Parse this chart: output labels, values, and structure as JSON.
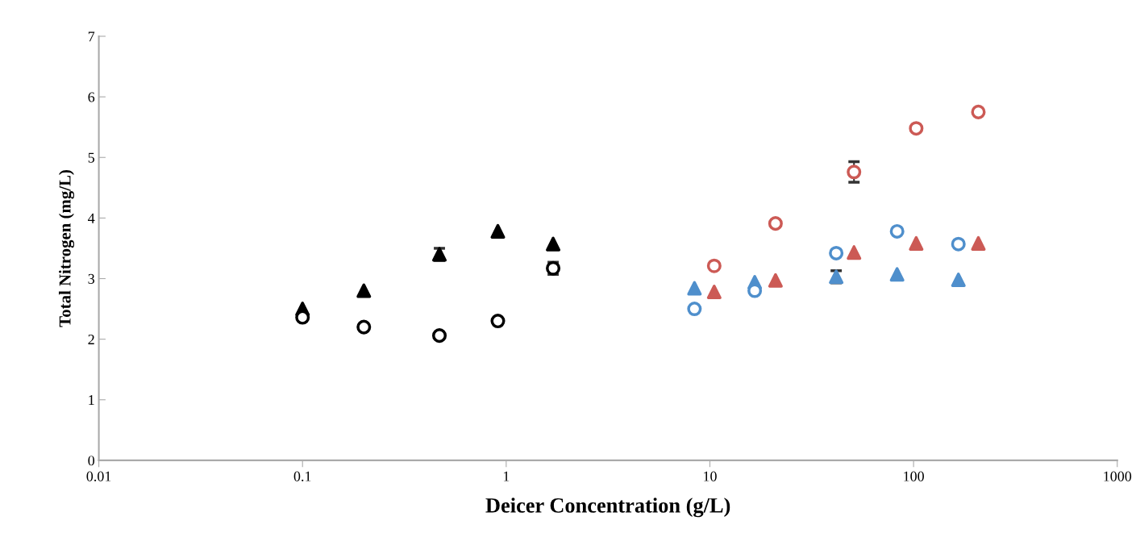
{
  "chart_data": {
    "type": "scatter",
    "xlabel": "Deicer Concentration (g/L)",
    "ylabel": "Total Nitrogen (mg/L)",
    "log": "x",
    "xlim": [
      0.01,
      1000
    ],
    "xticks": [
      0.01,
      0.1,
      1,
      10,
      100,
      1000
    ],
    "ylim": [
      0,
      7
    ],
    "yticks": [
      0,
      1,
      2,
      3,
      4,
      5,
      6,
      7
    ],
    "grid": false,
    "legend": false,
    "series": [
      {
        "color": "#000000",
        "marker": "triangle",
        "x": [
          0.1,
          0.2,
          0.47,
          0.91,
          1.7
        ],
        "values": [
          2.5,
          2.8,
          3.4,
          3.78,
          3.57
        ],
        "errors": [
          null,
          null,
          0.1,
          null,
          null
        ]
      },
      {
        "color": "#000000",
        "marker": "circle",
        "x": [
          0.1,
          0.2,
          0.47,
          0.91,
          1.7
        ],
        "values": [
          2.36,
          2.2,
          2.06,
          2.3,
          3.17
        ],
        "errors": [
          null,
          null,
          null,
          null,
          0.1
        ]
      },
      {
        "color": "#4f8fcc",
        "marker": "triangle",
        "x": [
          8.4,
          16.6,
          41.7,
          83,
          166
        ],
        "values": [
          2.84,
          2.94,
          3.03,
          3.07,
          2.98
        ],
        "errors": [
          null,
          null,
          0.1,
          null,
          null
        ]
      },
      {
        "color": "#4f8fcc",
        "marker": "circle",
        "x": [
          8.4,
          16.6,
          41.7,
          83,
          166
        ],
        "values": [
          2.5,
          2.8,
          3.42,
          3.78,
          3.57
        ]
      },
      {
        "color": "#cc5a55",
        "marker": "triangle",
        "x": [
          10.5,
          21,
          51,
          103,
          208
        ],
        "values": [
          2.78,
          2.97,
          3.43,
          3.58,
          3.58
        ]
      },
      {
        "color": "#cc5a55",
        "marker": "circle",
        "x": [
          10.5,
          21,
          51,
          103,
          208
        ],
        "values": [
          3.21,
          3.91,
          4.76,
          5.48,
          5.75
        ],
        "errors": [
          null,
          null,
          0.17,
          null,
          null
        ]
      }
    ]
  }
}
